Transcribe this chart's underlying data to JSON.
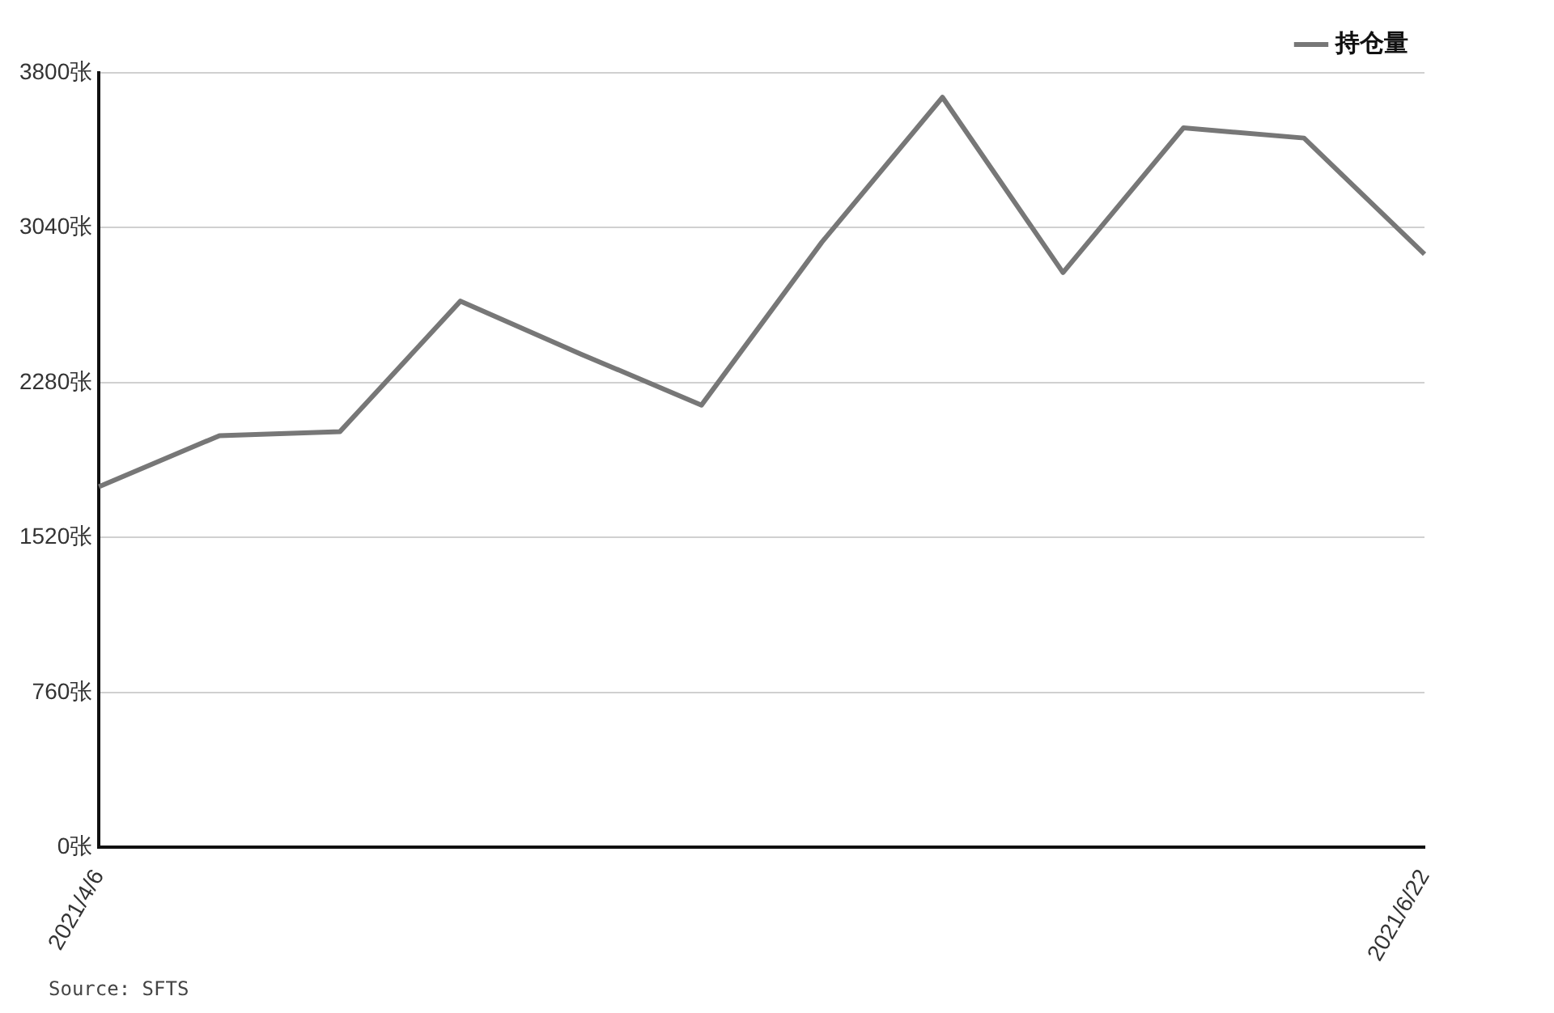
{
  "chart_data": {
    "type": "line",
    "categories": [
      "2021/4/6",
      null,
      null,
      null,
      null,
      null,
      null,
      null,
      null,
      null,
      null,
      "2021/6/22"
    ],
    "series": [
      {
        "name": "持仓量",
        "color": "#777777",
        "values": [
          1770,
          2020,
          2040,
          2680,
          2420,
          2170,
          2970,
          3680,
          2820,
          3530,
          3480,
          2910
        ]
      }
    ],
    "ylim": [
      0,
      3800
    ],
    "yticks": [
      {
        "value": 0,
        "label": "0张"
      },
      {
        "value": 760,
        "label": "760张"
      },
      {
        "value": 1520,
        "label": "1520张"
      },
      {
        "value": 2280,
        "label": "2280张"
      },
      {
        "value": 3040,
        "label": "3040张"
      },
      {
        "value": 3800,
        "label": "3800张"
      }
    ],
    "grid": "y",
    "legend": "top right",
    "marker": "none",
    "line_style": "solid",
    "annotations": [
      "Source: SFTS"
    ]
  }
}
